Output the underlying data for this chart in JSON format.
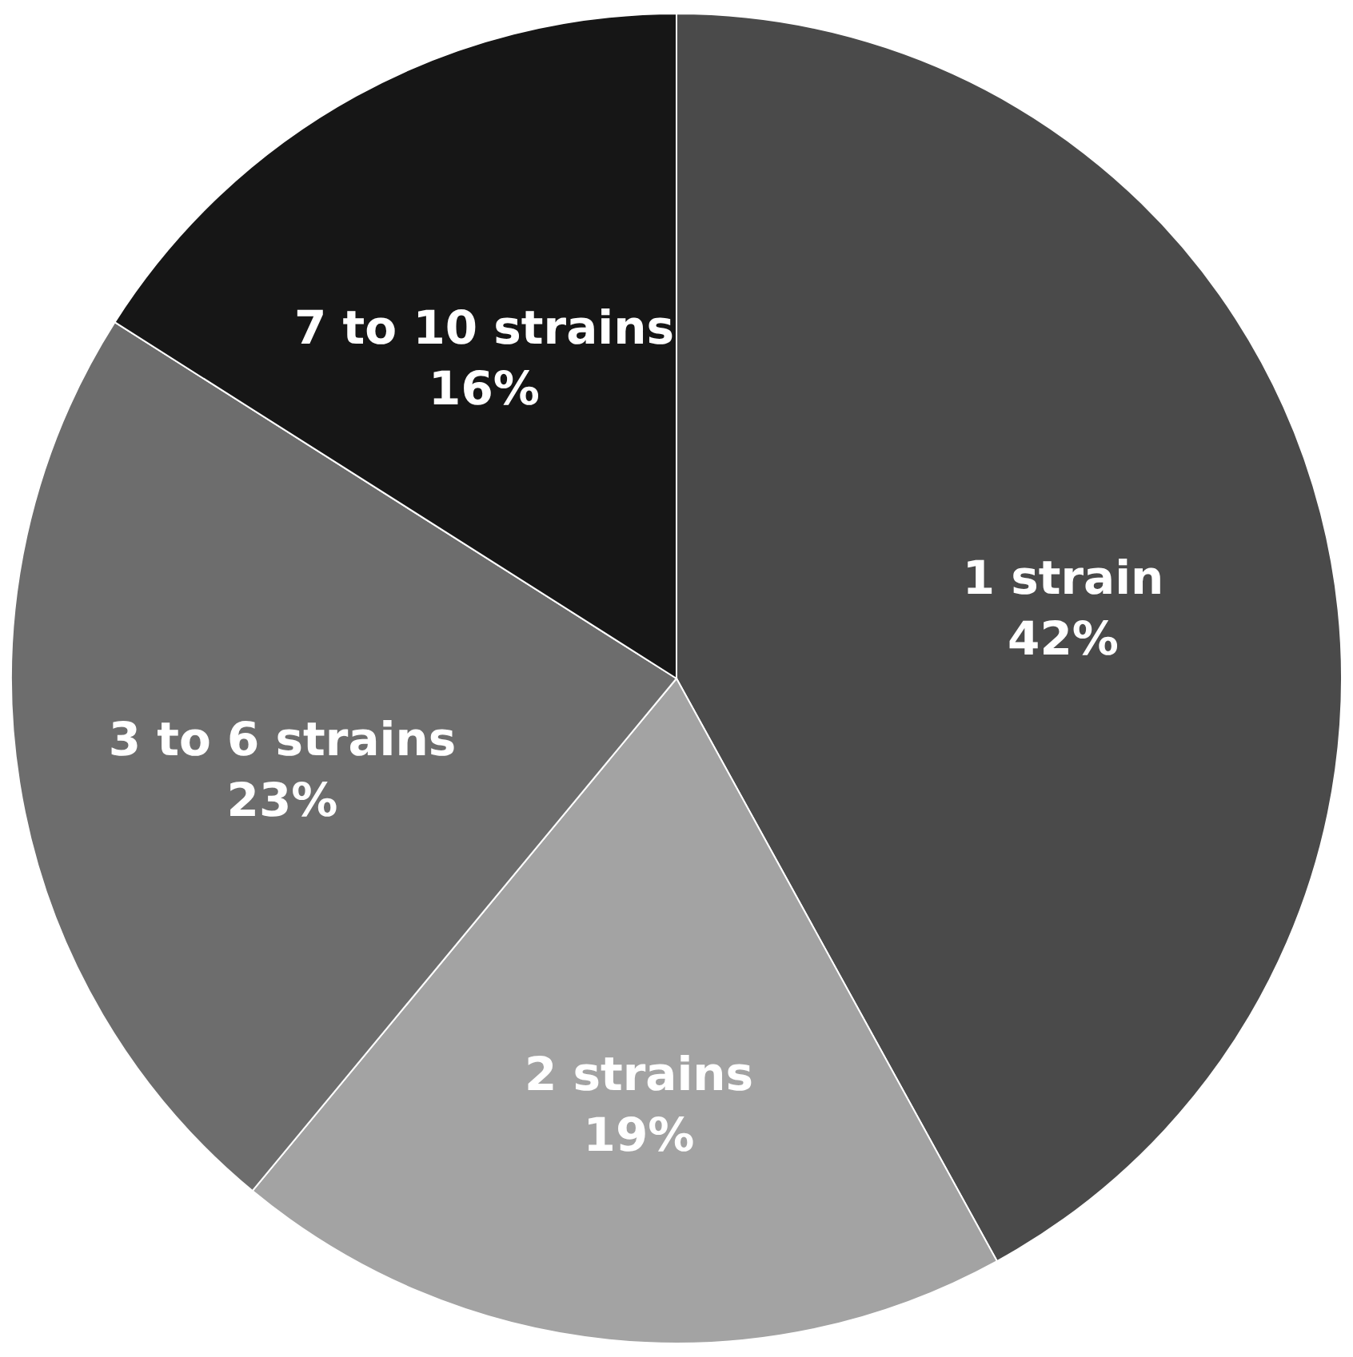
{
  "chart_data": {
    "type": "pie",
    "categories": [
      "1 strain",
      "2 strains",
      "3 to 6 strains",
      "7 to 10 strains"
    ],
    "values": [
      42,
      19,
      23,
      16
    ],
    "value_labels": [
      "42%",
      "19%",
      "23%",
      "16%"
    ],
    "colors": [
      "#4a4a4a",
      "#a3a3a3",
      "#6d6d6d",
      "#161616"
    ]
  }
}
